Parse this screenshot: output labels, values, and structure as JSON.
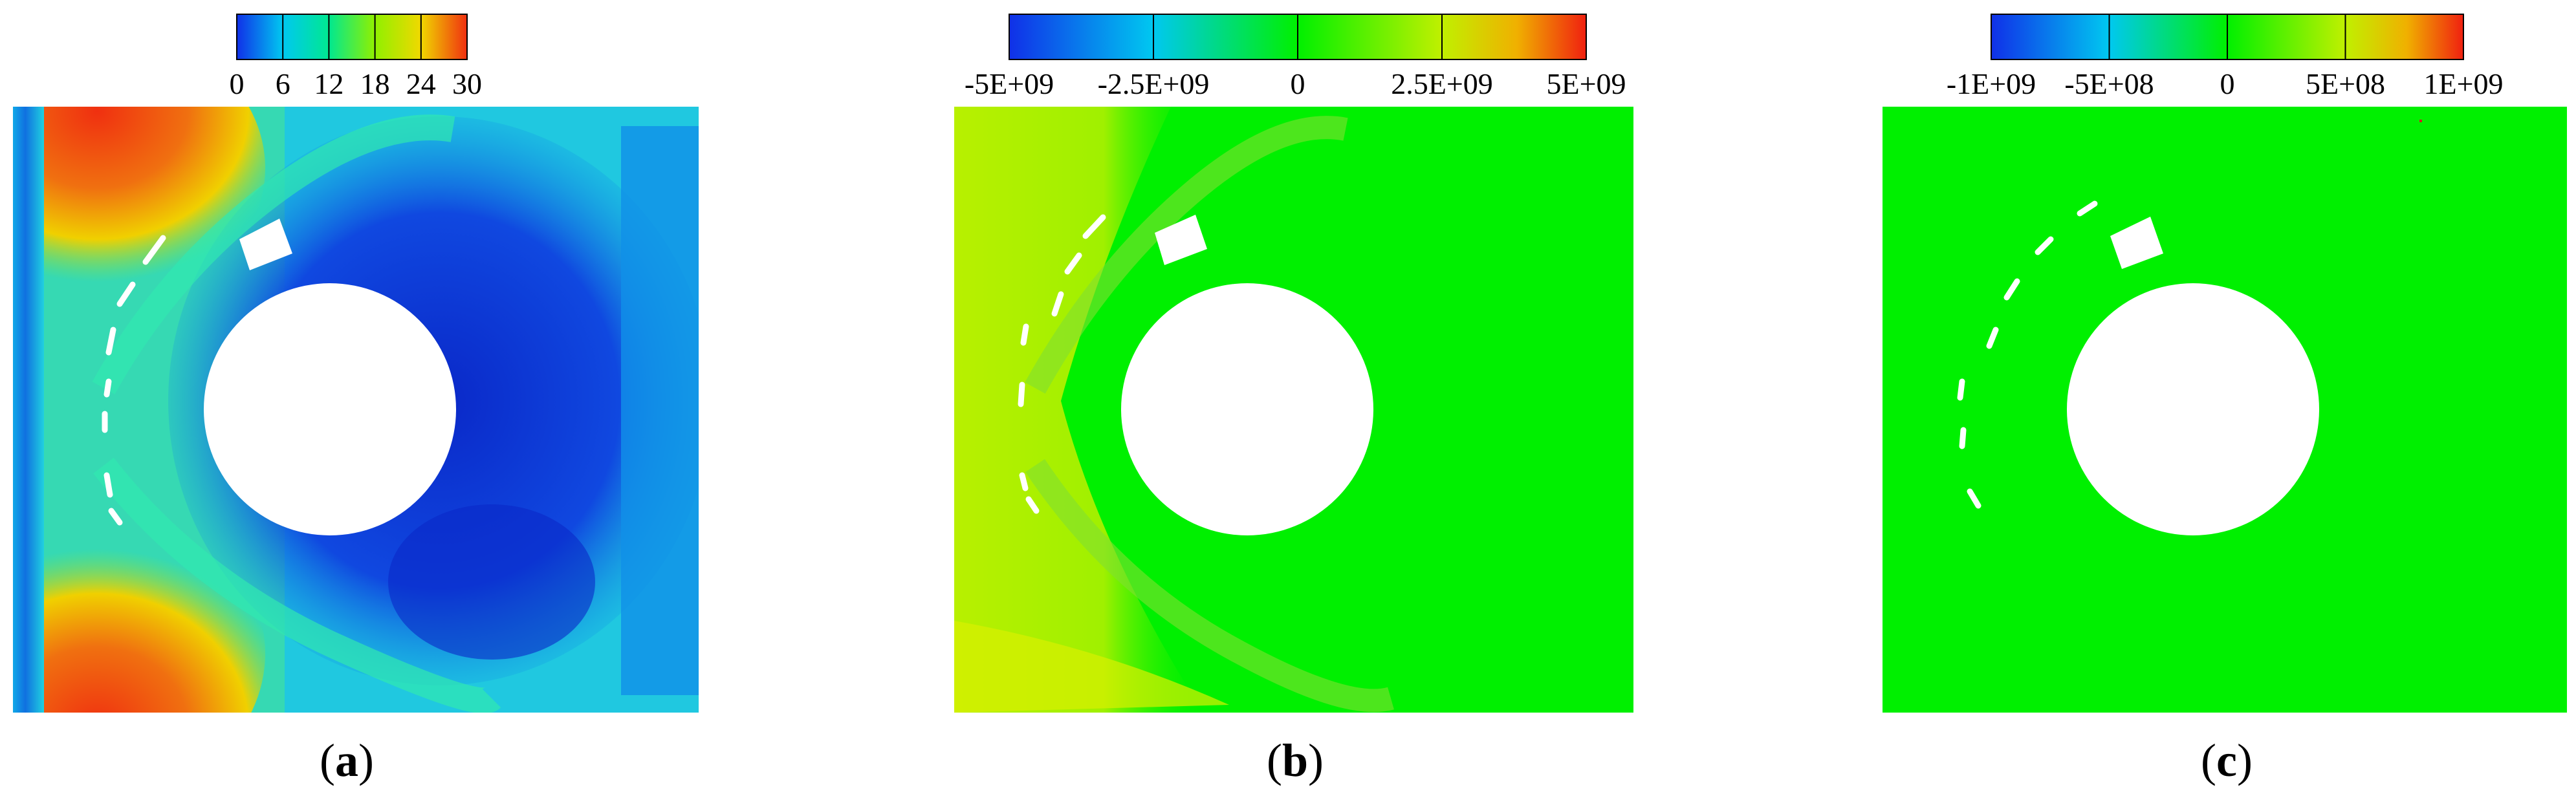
{
  "panels": [
    {
      "id": "a",
      "caption_letter": "a",
      "colorbar": {
        "ticks": [
          "0",
          "6",
          "12",
          "18",
          "24",
          "30"
        ],
        "colors": [
          "#1030e8",
          "#00c8f0",
          "#00e890",
          "#90f000",
          "#f0d800",
          "#f03010"
        ]
      },
      "field_colors": {
        "background": "#00c8e0",
        "wake": "#1048e0",
        "wake_deep": "#0a28c8",
        "hot": "#f04010",
        "warm": "#f0d000",
        "green": "#30e060",
        "inlet": "#1080e0"
      }
    },
    {
      "id": "b",
      "caption_letter": "b",
      "colorbar": {
        "ticks": [
          "-5E+09",
          "-2.5E+09",
          "0",
          "2.5E+09",
          "5E+09"
        ],
        "colors": [
          "#1030e8",
          "#00c8f0",
          "#00e890",
          "#90f000",
          "#f0d800",
          "#f03010"
        ]
      },
      "field_colors": {
        "background": "#00f000",
        "yellow_region": "#b8f000",
        "noise": "#60e020"
      }
    },
    {
      "id": "c",
      "caption_letter": "c",
      "colorbar": {
        "ticks": [
          "-1E+09",
          "-5E+08",
          "0",
          "5E+08",
          "1E+09"
        ],
        "colors": [
          "#1030e8",
          "#00c8f0",
          "#00e890",
          "#90f000",
          "#f0d800",
          "#f03010"
        ]
      },
      "field_colors": {
        "background": "#00f000"
      }
    }
  ]
}
